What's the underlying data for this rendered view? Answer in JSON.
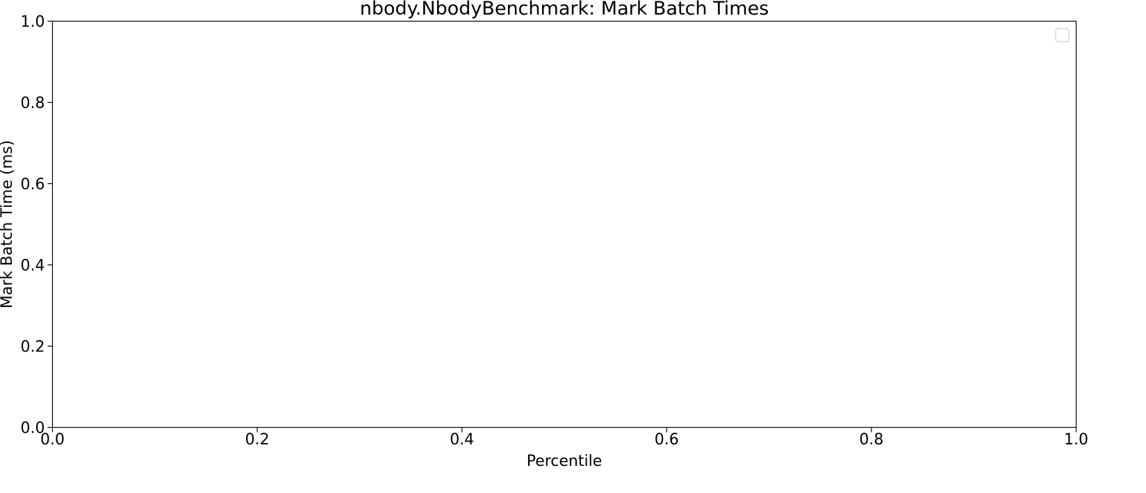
{
  "chart_data": {
    "type": "line",
    "title": "nbody.NbodyBenchmark: Mark Batch Times",
    "xlabel": "Percentile",
    "ylabel": "Mark Batch Time (ms)",
    "xlim": [
      0.0,
      1.0
    ],
    "ylim": [
      0.0,
      1.0
    ],
    "xticks": [
      "0.0",
      "0.2",
      "0.4",
      "0.6",
      "0.8",
      "1.0"
    ],
    "yticks": [
      "0.0",
      "0.2",
      "0.4",
      "0.6",
      "0.8",
      "1.0"
    ],
    "grid": false,
    "legend": "top-right",
    "series": []
  }
}
